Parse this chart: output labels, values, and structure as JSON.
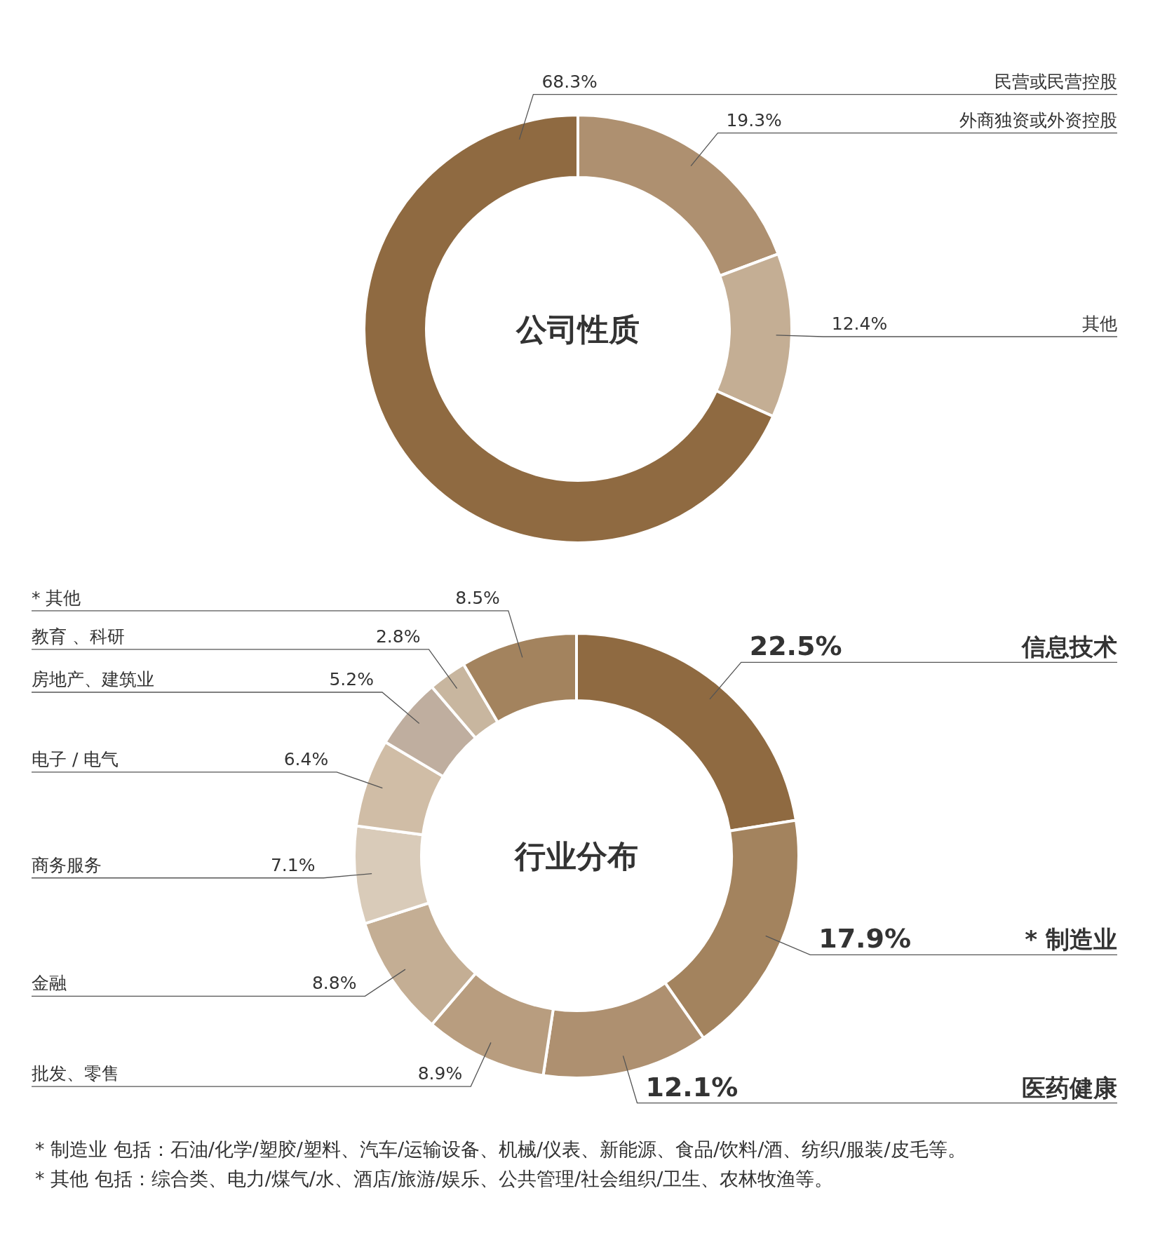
{
  "chart_data": [
    {
      "type": "donut",
      "title": "公司性质",
      "categories": [
        "外商独资或外资控股",
        "其他",
        "民营或民营控股"
      ],
      "values": [
        19.3,
        12.4,
        68.3
      ],
      "colors": [
        "#ae9070",
        "#c4ae94",
        "#8f6a41"
      ],
      "value_labels": [
        "19.3%",
        "12.4%",
        "68.3%"
      ]
    },
    {
      "type": "donut",
      "title": "行业分布",
      "categories": [
        "信息技术",
        "* 制造业",
        "医药健康",
        "批发、零售",
        "金融",
        "商务服务",
        "电子 / 电气",
        "房地产、建筑业",
        "教育 、科研",
        "* 其他"
      ],
      "values": [
        22.5,
        17.9,
        12.1,
        8.9,
        8.8,
        7.1,
        6.4,
        5.2,
        2.8,
        8.5
      ],
      "colors": [
        "#8f6a41",
        "#a3835e",
        "#ae9070",
        "#b89d7f",
        "#c4ae94",
        "#d9cbb9",
        "#d0bda6",
        "#bfae9f",
        "#c8b69f",
        "#a3835e"
      ],
      "value_labels": [
        "22.5%",
        "17.9%",
        "12.1%",
        "8.9%",
        "8.8%",
        "7.1%",
        "6.4%",
        "5.2%",
        "2.8%",
        "8.5%"
      ],
      "annotations": [
        "*  制造业 包括：石油/化学/塑胶/塑料、汽车/运输设备、机械/仪表、新能源、食品/饮料/酒、纺织/服装/皮毛等。",
        "*  其他 包括：综合类、电力/煤气/水、酒店/旅游/娱乐、公共管理/社会组织/卫生、农林牧渔等。"
      ]
    }
  ]
}
